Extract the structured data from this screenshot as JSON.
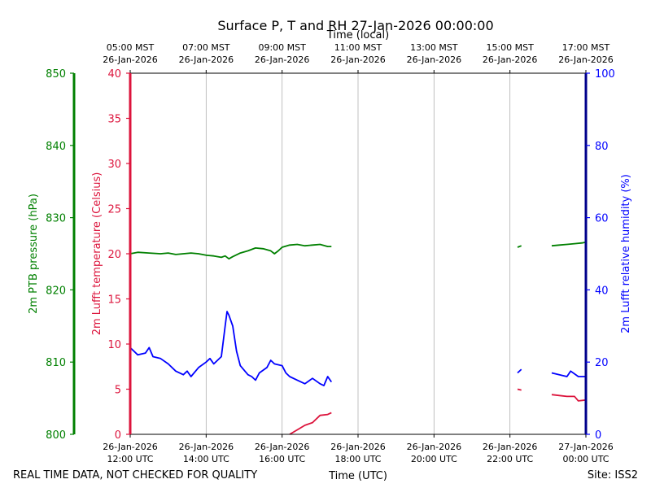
{
  "chart_data": {
    "type": "line",
    "title": "Surface P, T and RH 27-Jan-2026 00:00:00",
    "top_axis_label": "Time (local)",
    "top_ticks": [
      {
        "h": 12,
        "time": "05:00 MST",
        "date": "26-Jan-2026"
      },
      {
        "h": 14,
        "time": "07:00 MST",
        "date": "26-Jan-2026"
      },
      {
        "h": 16,
        "time": "09:00 MST",
        "date": "26-Jan-2026"
      },
      {
        "h": 18,
        "time": "11:00 MST",
        "date": "26-Jan-2026"
      },
      {
        "h": 20,
        "time": "13:00 MST",
        "date": "26-Jan-2026"
      },
      {
        "h": 22,
        "time": "15:00 MST",
        "date": "26-Jan-2026"
      },
      {
        "h": 24,
        "time": "17:00 MST",
        "date": "26-Jan-2026"
      }
    ],
    "bottom_axis_label": "Time (UTC)",
    "bottom_ticks": [
      {
        "h": 12,
        "date": "26-Jan-2026",
        "time": "12:00 UTC"
      },
      {
        "h": 14,
        "date": "26-Jan-2026",
        "time": "14:00 UTC"
      },
      {
        "h": 16,
        "date": "26-Jan-2026",
        "time": "16:00 UTC"
      },
      {
        "h": 18,
        "date": "26-Jan-2026",
        "time": "18:00 UTC"
      },
      {
        "h": 20,
        "date": "26-Jan-2026",
        "time": "20:00 UTC"
      },
      {
        "h": 22,
        "date": "26-Jan-2026",
        "time": "22:00 UTC"
      },
      {
        "h": 24,
        "date": "27-Jan-2026",
        "time": "00:00 UTC"
      }
    ],
    "xlim": [
      12,
      24
    ],
    "grid": "vertical",
    "axes": {
      "pressure": {
        "label": "2m PTB pressure (hPa)",
        "color": "#008000",
        "ylim": [
          800,
          850
        ],
        "ticks": [
          800,
          810,
          820,
          830,
          840,
          850
        ]
      },
      "temperature": {
        "label": "2m Lufft temperature (Celsius)",
        "color": "#dc143c",
        "ylim": [
          0,
          40
        ],
        "ticks": [
          0,
          5,
          10,
          15,
          20,
          25,
          30,
          35,
          40
        ]
      },
      "humidity": {
        "label": "2m Lufft relative humidity (%)",
        "color": "#0000ff",
        "ylim": [
          0,
          100
        ],
        "ticks": [
          0,
          20,
          40,
          60,
          80,
          100
        ]
      }
    },
    "series": [
      {
        "name": "2m PTB pressure (hPa)",
        "color": "#008000",
        "axis": "pressure",
        "segments": [
          [
            [
              12.0,
              825.0
            ],
            [
              12.2,
              825.2
            ],
            [
              12.5,
              825.1
            ],
            [
              12.8,
              825.0
            ],
            [
              13.0,
              825.1
            ],
            [
              13.2,
              824.9
            ],
            [
              13.4,
              825.0
            ],
            [
              13.6,
              825.1
            ],
            [
              13.8,
              825.0
            ],
            [
              14.0,
              824.8
            ],
            [
              14.2,
              824.7
            ],
            [
              14.4,
              824.5
            ],
            [
              14.5,
              824.7
            ],
            [
              14.6,
              824.3
            ],
            [
              14.7,
              824.6
            ],
            [
              14.9,
              825.1
            ],
            [
              15.1,
              825.4
            ],
            [
              15.3,
              825.8
            ],
            [
              15.5,
              825.7
            ],
            [
              15.7,
              825.4
            ],
            [
              15.8,
              825.0
            ],
            [
              15.9,
              825.4
            ],
            [
              16.0,
              825.9
            ],
            [
              16.2,
              826.2
            ],
            [
              16.4,
              826.3
            ],
            [
              16.6,
              826.1
            ],
            [
              16.8,
              826.2
            ],
            [
              17.0,
              826.3
            ],
            [
              17.2,
              826.0
            ],
            [
              17.3,
              826.0
            ]
          ],
          [
            [
              22.2,
              825.9
            ],
            [
              22.3,
              826.1
            ]
          ],
          [
            [
              23.1,
              826.1
            ],
            [
              23.3,
              826.2
            ],
            [
              23.5,
              826.3
            ],
            [
              23.7,
              826.4
            ],
            [
              23.9,
              826.5
            ],
            [
              24.0,
              826.6
            ]
          ]
        ]
      },
      {
        "name": "2m Lufft temperature (Celsius)",
        "color": "#dc143c",
        "axis": "temperature",
        "segments": [
          [
            [
              16.2,
              0.0
            ],
            [
              16.4,
              0.5
            ],
            [
              16.6,
              1.0
            ],
            [
              16.8,
              1.3
            ],
            [
              17.0,
              2.1
            ],
            [
              17.2,
              2.2
            ],
            [
              17.3,
              2.4
            ]
          ],
          [
            [
              22.2,
              5.0
            ],
            [
              22.3,
              4.9
            ]
          ],
          [
            [
              23.1,
              4.4
            ],
            [
              23.3,
              4.3
            ],
            [
              23.5,
              4.2
            ],
            [
              23.7,
              4.2
            ],
            [
              23.8,
              3.7
            ],
            [
              24.0,
              3.8
            ]
          ]
        ]
      },
      {
        "name": "2m Lufft relative humidity (%)",
        "color": "#0000ff",
        "axis": "humidity",
        "segments": [
          [
            [
              12.0,
              24.0
            ],
            [
              12.2,
              22.0
            ],
            [
              12.4,
              22.5
            ],
            [
              12.5,
              24.0
            ],
            [
              12.6,
              21.5
            ],
            [
              12.8,
              21.0
            ],
            [
              13.0,
              19.5
            ],
            [
              13.2,
              17.5
            ],
            [
              13.4,
              16.5
            ],
            [
              13.5,
              17.5
            ],
            [
              13.6,
              16.0
            ],
            [
              13.8,
              18.5
            ],
            [
              14.0,
              20.0
            ],
            [
              14.1,
              21.0
            ],
            [
              14.2,
              19.5
            ],
            [
              14.4,
              21.5
            ],
            [
              14.5,
              30.0
            ],
            [
              14.55,
              34.0
            ],
            [
              14.6,
              33.0
            ],
            [
              14.7,
              30.0
            ],
            [
              14.8,
              23.0
            ],
            [
              14.9,
              19.0
            ],
            [
              15.1,
              16.5
            ],
            [
              15.2,
              16.0
            ],
            [
              15.3,
              15.0
            ],
            [
              15.4,
              17.0
            ],
            [
              15.6,
              18.5
            ],
            [
              15.7,
              20.5
            ],
            [
              15.8,
              19.5
            ],
            [
              16.0,
              19.0
            ],
            [
              16.1,
              17.0
            ],
            [
              16.2,
              16.0
            ],
            [
              16.4,
              15.0
            ],
            [
              16.6,
              14.0
            ],
            [
              16.8,
              15.5
            ],
            [
              17.0,
              14.0
            ],
            [
              17.1,
              13.5
            ],
            [
              17.2,
              16.0
            ],
            [
              17.3,
              14.5
            ]
          ],
          [
            [
              22.2,
              17.0
            ],
            [
              22.3,
              18.0
            ]
          ],
          [
            [
              23.1,
              17.0
            ],
            [
              23.3,
              16.5
            ],
            [
              23.5,
              16.0
            ],
            [
              23.6,
              17.5
            ],
            [
              23.8,
              16.0
            ],
            [
              24.0,
              16.0
            ]
          ]
        ]
      }
    ]
  },
  "footer": {
    "left_note": "REAL TIME DATA, NOT CHECKED FOR QUALITY",
    "site": "Site: ISS2"
  }
}
